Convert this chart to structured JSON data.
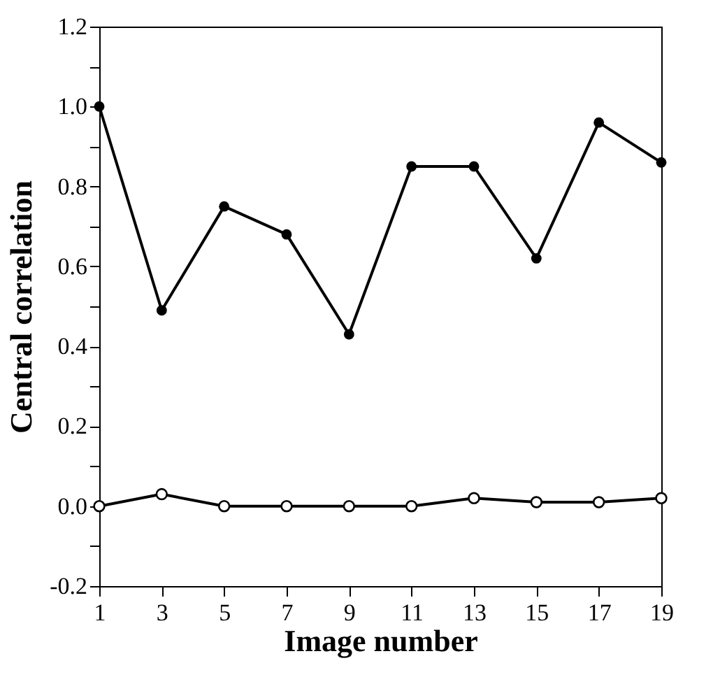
{
  "chart_data": {
    "type": "line",
    "xlabel": "Image number",
    "ylabel": "Central correlation",
    "x": [
      1,
      3,
      5,
      7,
      9,
      11,
      13,
      15,
      17,
      19
    ],
    "series": [
      {
        "color": "#000000",
        "values": [
          1.0,
          0.49,
          0.75,
          0.68,
          0.43,
          0.85,
          0.85,
          0.62,
          0.96,
          0.86
        ]
      },
      {
        "color": "#000000",
        "values": [
          0.0,
          0.03,
          0.0,
          0.0,
          0.0,
          0.0,
          0.02,
          0.01,
          0.01,
          0.02
        ]
      }
    ],
    "xlim": [
      1,
      19
    ],
    "xticks": [
      1,
      3,
      5,
      7,
      9,
      11,
      13,
      15,
      17,
      19
    ],
    "ylim": [
      -0.2,
      1.2
    ],
    "yticks": [
      -0.2,
      {
        "value": -0.1,
        "label": null
      },
      "0.0",
      {
        "value": 0.1,
        "label": null
      },
      0.2,
      {
        "value": 0.3,
        "label": null
      },
      0.4,
      {
        "value": 0.5,
        "label": null
      },
      0.6,
      {
        "value": 0.7,
        "label": null
      },
      0.8,
      {
        "value": 0.9,
        "label": null
      },
      "1.0",
      {
        "value": 1.1,
        "label": null
      },
      1.2
    ],
    "grid": false,
    "marker": "circle",
    "line_style": "solid"
  }
}
